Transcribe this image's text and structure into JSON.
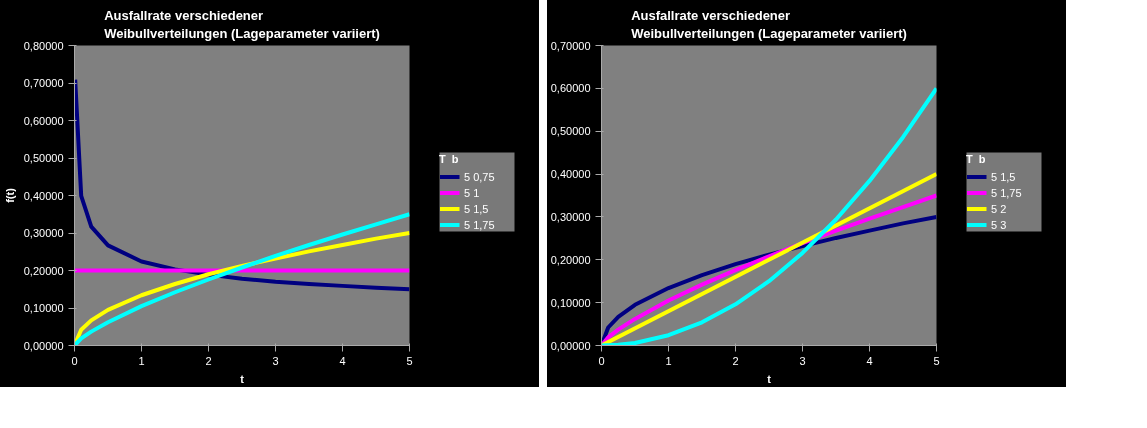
{
  "chart_data": [
    {
      "type": "line",
      "title": "Ausfallrate verschiedener\nWeibullverteilungen (Lageparameter variiert)",
      "xlabel": "t",
      "ylabel": "f(t)",
      "legend_title": "T  b",
      "legend": "right",
      "grid": false,
      "xlim": [
        0,
        5
      ],
      "xticks": [
        0,
        1,
        2,
        3,
        4,
        5
      ],
      "ylim": [
        0,
        0.8
      ],
      "yticks": [
        {
          "value": 0,
          "label": "0,00000"
        },
        {
          "value": 0.1,
          "label": "0,10000"
        },
        {
          "value": 0.2,
          "label": "0,20000"
        },
        {
          "value": 0.3,
          "label": "0,30000"
        },
        {
          "value": 0.4,
          "label": "0,40000"
        },
        {
          "value": 0.5,
          "label": "0,50000"
        },
        {
          "value": 0.6,
          "label": "0,60000"
        },
        {
          "value": 0.7,
          "label": "0,70000"
        },
        {
          "value": 0.8,
          "label": "0,80000"
        }
      ],
      "series": [
        {
          "name": "5 0,75",
          "color": "#000080",
          "x": [
            0.01,
            0.1,
            0.25,
            0.5,
            1,
            1.5,
            2,
            2.5,
            3,
            3.5,
            4,
            4.5,
            5
          ],
          "values": [
            0.709,
            0.399,
            0.317,
            0.267,
            0.224,
            0.203,
            0.189,
            0.178,
            0.17,
            0.164,
            0.159,
            0.154,
            0.15
          ]
        },
        {
          "name": "5 1",
          "color": "#ff00ff",
          "x": [
            0,
            5
          ],
          "values": [
            0.2,
            0.2
          ]
        },
        {
          "name": "5 1,5",
          "color": "#ffff00",
          "x": [
            0,
            0.1,
            0.25,
            0.5,
            1,
            1.5,
            2,
            2.5,
            3,
            3.5,
            4,
            4.5,
            5
          ],
          "values": [
            0,
            0.042,
            0.067,
            0.095,
            0.134,
            0.164,
            0.19,
            0.212,
            0.232,
            0.251,
            0.268,
            0.285,
            0.3
          ]
        },
        {
          "name": "5 1,75",
          "color": "#00ffff",
          "x": [
            0,
            0.1,
            0.25,
            0.5,
            1,
            1.5,
            2,
            2.5,
            3,
            3.5,
            4,
            4.5,
            5
          ],
          "values": [
            0,
            0.019,
            0.037,
            0.062,
            0.105,
            0.142,
            0.176,
            0.208,
            0.239,
            0.268,
            0.296,
            0.323,
            0.35
          ]
        }
      ]
    },
    {
      "type": "line",
      "title": "Ausfallrate verschiedener\nWeibullverteilungen (Lageparameter variiert)",
      "xlabel": "t",
      "legend_title": "T  b",
      "legend": "right",
      "grid": false,
      "xlim": [
        0,
        5
      ],
      "xticks": [
        0,
        1,
        2,
        3,
        4,
        5
      ],
      "ylim": [
        0,
        0.7
      ],
      "yticks": [
        {
          "value": 0,
          "label": "0,00000"
        },
        {
          "value": 0.1,
          "label": "0,10000"
        },
        {
          "value": 0.2,
          "label": "0,20000"
        },
        {
          "value": 0.3,
          "label": "0,30000"
        },
        {
          "value": 0.4,
          "label": "0,40000"
        },
        {
          "value": 0.5,
          "label": "0,50000"
        },
        {
          "value": 0.6,
          "label": "0,60000"
        },
        {
          "value": 0.7,
          "label": "0,70000"
        }
      ],
      "series": [
        {
          "name": "5 1,5",
          "color": "#000080",
          "x": [
            0,
            0.1,
            0.25,
            0.5,
            1,
            1.5,
            2,
            2.5,
            3,
            3.5,
            4,
            4.5,
            5
          ],
          "values": [
            0,
            0.042,
            0.067,
            0.095,
            0.134,
            0.164,
            0.19,
            0.212,
            0.232,
            0.251,
            0.268,
            0.285,
            0.3
          ]
        },
        {
          "name": "5 1,75",
          "color": "#ff00ff",
          "x": [
            0,
            0.1,
            0.25,
            0.5,
            1,
            1.5,
            2,
            2.5,
            3,
            3.5,
            4,
            4.5,
            5
          ],
          "values": [
            0,
            0.019,
            0.037,
            0.062,
            0.105,
            0.142,
            0.176,
            0.208,
            0.239,
            0.268,
            0.296,
            0.323,
            0.35
          ]
        },
        {
          "name": "5 2",
          "color": "#ffff00",
          "x": [
            0,
            5
          ],
          "values": [
            0,
            0.4
          ]
        },
        {
          "name": "5 3",
          "color": "#00ffff",
          "x": [
            0,
            0.25,
            0.5,
            1,
            1.5,
            2,
            2.5,
            3,
            3.5,
            4,
            4.5,
            5
          ],
          "values": [
            0,
            0.002,
            0.006,
            0.024,
            0.054,
            0.096,
            0.15,
            0.216,
            0.294,
            0.384,
            0.486,
            0.6
          ]
        }
      ]
    }
  ]
}
